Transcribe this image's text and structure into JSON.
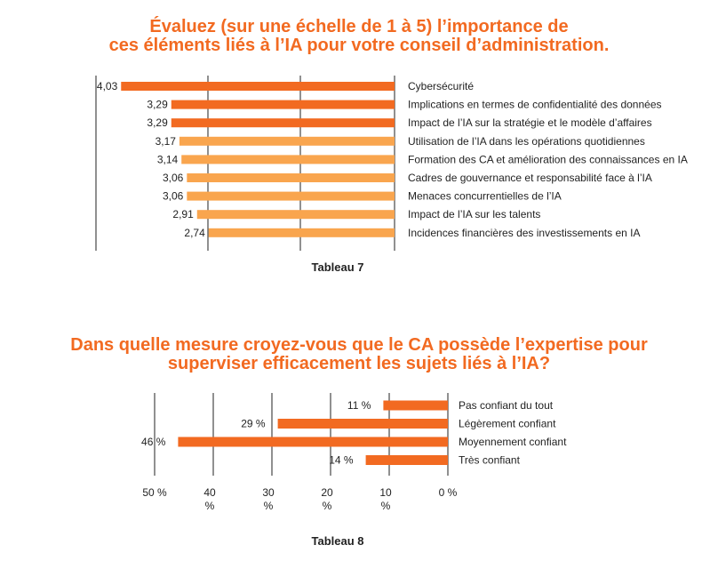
{
  "chart_data": [
    {
      "type": "bar",
      "orientation": "horizontal",
      "title": "Évaluez (sur une échelle de 1 à 5) l’importance de ces éléments liés à l’IA pour votre conseil d’administration.",
      "caption": "Tableau 7",
      "categories": [
        "Cybersécurité",
        "Implications en termes de confidentialité des données",
        "Impact de l’IA sur la stratégie et le modèle d’affaires",
        "Utilisation de l’IA dans les opérations quotidiennes",
        "Formation des CA et amélioration des connaissances en IA",
        "Cadres de gouvernance et responsabilité face à l’IA",
        "Menaces concurrentielles de l’IA",
        "Impact de l’IA sur les talents",
        "Incidences financières des investissements en IA"
      ],
      "values": [
        4.03,
        3.29,
        3.29,
        3.17,
        3.14,
        3.06,
        3.06,
        2.91,
        2.74
      ],
      "value_labels": [
        "4,03",
        "3,29",
        "3,29",
        "3,17",
        "3,14",
        "3,06",
        "3,06",
        "2,91",
        "2,74"
      ],
      "bar_colors": [
        "#f26a21",
        "#f26a21",
        "#f26a21",
        "#f9a54e",
        "#f9a54e",
        "#f9a54e",
        "#f9a54e",
        "#f9a54e",
        "#f9a54e"
      ],
      "xlim": [
        0,
        4.4
      ],
      "grid": true
    },
    {
      "type": "bar",
      "orientation": "horizontal",
      "title": "Dans quelle mesure croyez-vous que le CA possède l’expertise pour superviser efficacement les sujets liés à l’IA?",
      "caption": "Tableau 8",
      "categories": [
        "Pas confiant du tout",
        "Légèrement confiant",
        "Moyennement confiant",
        "Très confiant"
      ],
      "values": [
        11,
        29,
        46,
        14
      ],
      "value_labels": [
        "11 %",
        "29 %",
        "46 %",
        "14 %"
      ],
      "bar_color": "#f26a21",
      "ticks": [
        50,
        40,
        30,
        20,
        10,
        0
      ],
      "tick_labels": [
        "50 %",
        "40 %",
        "30 %",
        "20 %",
        "10 %",
        "0 %"
      ],
      "xlim": [
        0,
        50
      ],
      "grid": true
    }
  ]
}
